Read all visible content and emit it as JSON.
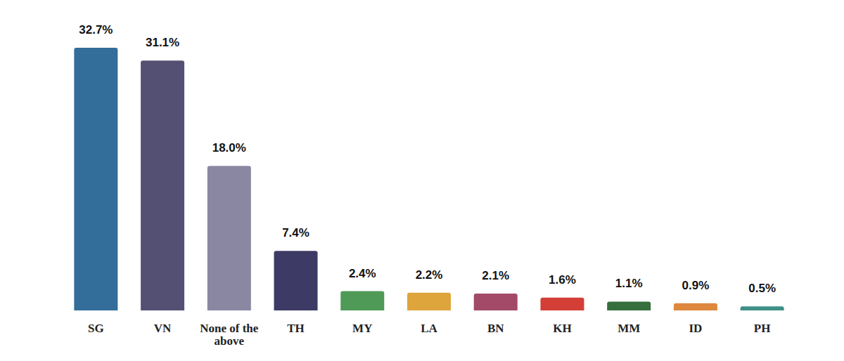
{
  "chart_data": {
    "type": "bar",
    "categories": [
      "SG",
      "VN",
      "None of the above",
      "TH",
      "MY",
      "LA",
      "BN",
      "KH",
      "MM",
      "ID",
      "PH"
    ],
    "values": [
      32.7,
      31.1,
      18.0,
      7.4,
      2.4,
      2.2,
      2.1,
      1.6,
      1.1,
      0.9,
      0.5
    ],
    "value_labels": [
      "32.7%",
      "31.1%",
      "18.0%",
      "7.4%",
      "2.4%",
      "2.2%",
      "2.1%",
      "1.6%",
      "1.1%",
      "0.9%",
      "0.5%"
    ],
    "colors": [
      "#336d99",
      "#545074",
      "#8a87a3",
      "#3e3a66",
      "#4f9a56",
      "#dea53d",
      "#a34a68",
      "#d33f36",
      "#356f3e",
      "#de873e",
      "#3e9086"
    ],
    "ylim": [
      0,
      32.7
    ],
    "data_labels": true,
    "tick_labels": false,
    "grid": false
  }
}
